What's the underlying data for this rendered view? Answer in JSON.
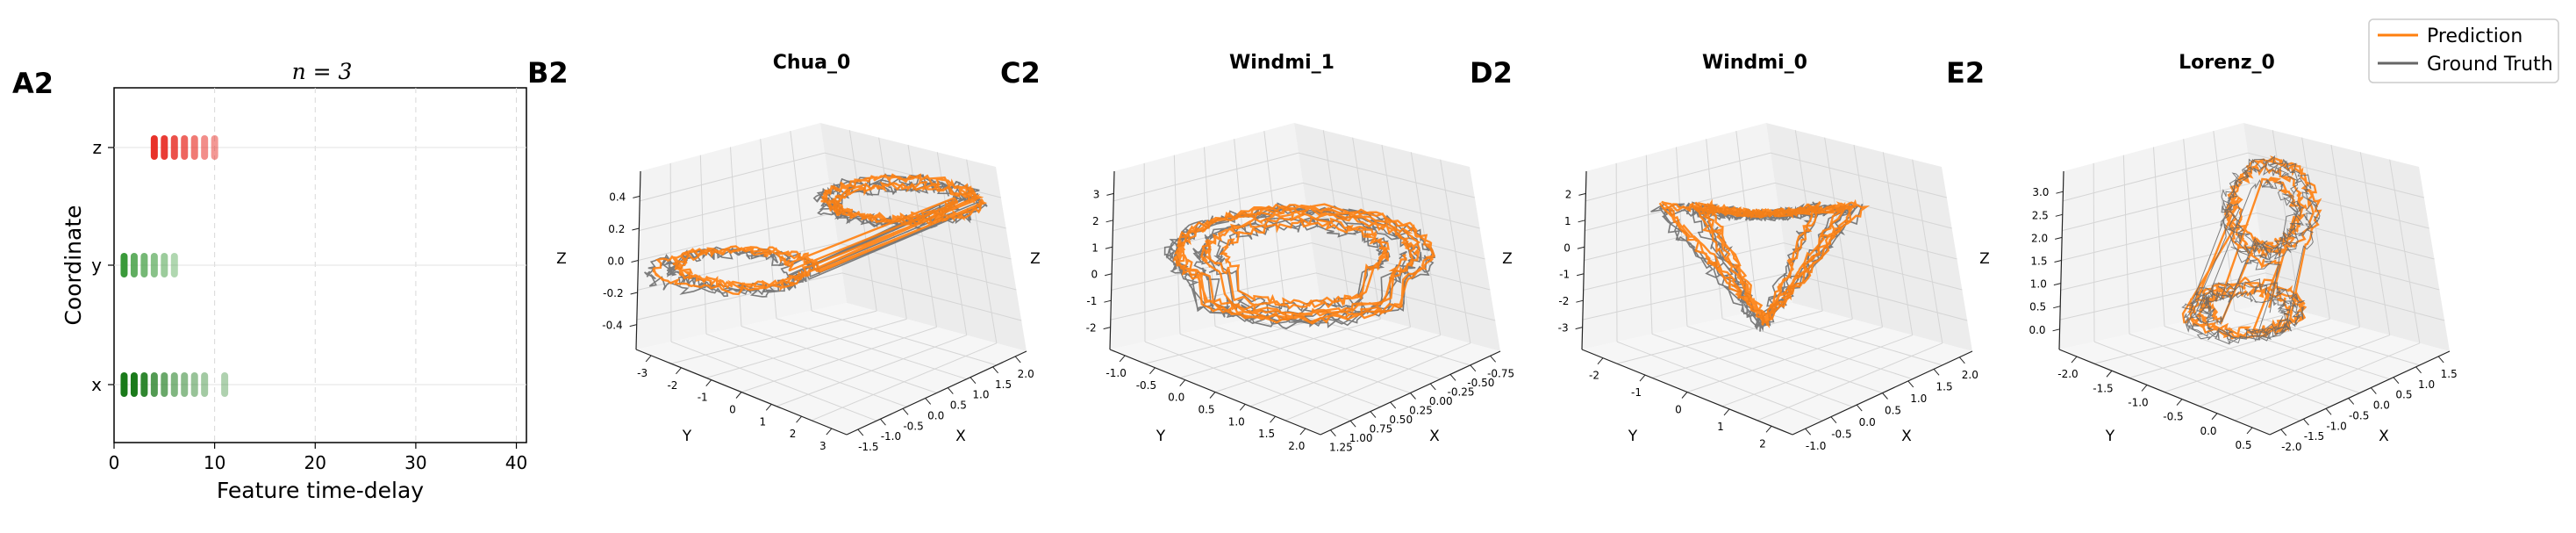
{
  "colors": {
    "prediction": "#ff7f0e",
    "ground_truth": "#666666",
    "z_feature": "#e8322a",
    "y_feature": "#3a9a3a",
    "x_feature": "#1a7a1a"
  },
  "legend": {
    "items": [
      {
        "label": "Prediction",
        "color": "#ff7f0e"
      },
      {
        "label": "Ground Truth",
        "color": "#666666"
      }
    ]
  },
  "chart_data": [
    {
      "type": "scatter",
      "panel": "A2",
      "title": "n = 3",
      "xlabel": "Feature time-delay",
      "ylabel": "Coordinate",
      "xlim": [
        0,
        41
      ],
      "xticks": [
        0,
        10,
        20,
        30,
        40
      ],
      "categories": [
        "x",
        "y",
        "z"
      ],
      "grid": true,
      "series": [
        {
          "coordinate": "z",
          "delays": [
            4,
            5,
            6,
            7,
            8,
            9,
            10
          ],
          "alpha": [
            1.0,
            0.95,
            0.85,
            0.75,
            0.65,
            0.55,
            0.5
          ]
        },
        {
          "coordinate": "y",
          "delays": [
            1,
            2,
            3,
            4,
            5,
            6
          ],
          "alpha": [
            1.0,
            0.8,
            0.7,
            0.6,
            0.5,
            0.4
          ]
        },
        {
          "coordinate": "x",
          "delays": [
            1,
            2,
            3,
            4,
            5,
            6,
            7,
            8,
            9,
            11
          ],
          "alpha": [
            1.0,
            1.0,
            0.9,
            0.75,
            0.65,
            0.55,
            0.5,
            0.45,
            0.4,
            0.35
          ]
        }
      ]
    },
    {
      "type": "line3d",
      "panel": "B2",
      "title": "Chua_0",
      "xlabel": "X",
      "ylabel": "Y",
      "zlabel": "Z",
      "xticks": [
        "-1.5",
        "-1.0",
        "-0.5",
        "0.0",
        "0.5",
        "1.0",
        "1.5",
        "2.0"
      ],
      "yticks": [
        "-3",
        "-2",
        "-1",
        "0",
        "1",
        "2",
        "3"
      ],
      "zticks": [
        "-0.4",
        "-0.2",
        "0.0",
        "0.2",
        "0.4"
      ]
    },
    {
      "type": "line3d",
      "panel": "C2",
      "title": "Windmi_1",
      "xlabel": "X",
      "ylabel": "Y",
      "zlabel": "Z",
      "xticks": [
        "1.25",
        "1.00",
        "0.75",
        "0.50",
        "0.25",
        "0.00",
        "-0.25",
        "-0.50",
        "-0.75"
      ],
      "yticks": [
        "-1.0",
        "-0.5",
        "0.0",
        "0.5",
        "1.0",
        "1.5",
        "2.0"
      ],
      "zticks": [
        "-2",
        "-1",
        "0",
        "1",
        "2",
        "3"
      ]
    },
    {
      "type": "line3d",
      "panel": "D2",
      "title": "Windmi_0",
      "xlabel": "X",
      "ylabel": "Y",
      "zlabel": "Z",
      "xticks": [
        "-1.0",
        "-0.5",
        "0.0",
        "0.5",
        "1.0",
        "1.5",
        "2.0"
      ],
      "yticks": [
        "-2",
        "-1",
        "0",
        "1",
        "2"
      ],
      "zticks": [
        "-3",
        "-2",
        "-1",
        "0",
        "1",
        "2"
      ]
    },
    {
      "type": "line3d",
      "panel": "E2",
      "title": "Lorenz_0",
      "xlabel": "X",
      "ylabel": "Y",
      "zlabel": "Z",
      "xticks": [
        "-2.0",
        "-1.5",
        "-1.0",
        "-0.5",
        "0.0",
        "0.5",
        "1.0",
        "1.5"
      ],
      "yticks": [
        "-2.0",
        "-1.5",
        "-1.0",
        "-0.5",
        "0.0",
        "0.5"
      ],
      "zticks": [
        "0.0",
        "0.5",
        "1.0",
        "1.5",
        "2.0",
        "2.5",
        "3.0"
      ]
    }
  ]
}
